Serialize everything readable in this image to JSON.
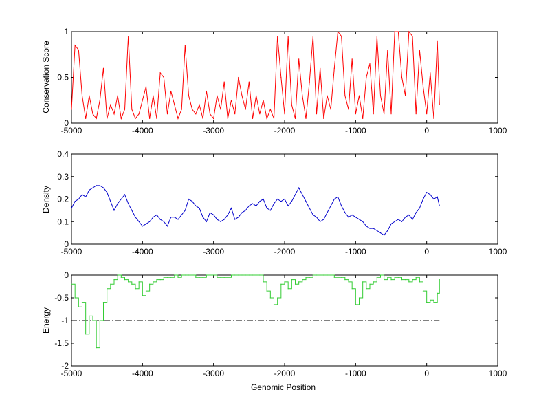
{
  "chart_data": [
    {
      "type": "line",
      "ylabel": "Conservation Score",
      "xlim": [
        -5000,
        1000
      ],
      "ylim": [
        0,
        1
      ],
      "xticks": [
        "-5000",
        "-4000",
        "-3000",
        "-2000",
        "-1000",
        "0",
        "1000"
      ],
      "yticks": [
        "0",
        "0.5",
        "1"
      ],
      "series": [
        {
          "color": "#ff0000",
          "x": [
            -5000,
            -4950,
            -4900,
            -4850,
            -4800,
            -4750,
            -4700,
            -4650,
            -4600,
            -4550,
            -4500,
            -4450,
            -4400,
            -4350,
            -4300,
            -4250,
            -4200,
            -4150,
            -4100,
            -4050,
            -4000,
            -3950,
            -3900,
            -3850,
            -3800,
            -3750,
            -3700,
            -3650,
            -3600,
            -3550,
            -3500,
            -3450,
            -3400,
            -3350,
            -3300,
            -3250,
            -3200,
            -3150,
            -3100,
            -3050,
            -3000,
            -2950,
            -2900,
            -2850,
            -2800,
            -2750,
            -2700,
            -2650,
            -2600,
            -2550,
            -2500,
            -2450,
            -2400,
            -2350,
            -2300,
            -2250,
            -2200,
            -2150,
            -2100,
            -2050,
            -2000,
            -1950,
            -1900,
            -1850,
            -1800,
            -1750,
            -1700,
            -1650,
            -1600,
            -1550,
            -1500,
            -1450,
            -1400,
            -1350,
            -1300,
            -1250,
            -1200,
            -1150,
            -1100,
            -1050,
            -1000,
            -950,
            -900,
            -850,
            -800,
            -750,
            -700,
            -650,
            -600,
            -550,
            -500,
            -450,
            -400,
            -350,
            -300,
            -250,
            -200,
            -150,
            -100,
            -50,
            0,
            50,
            100,
            150,
            180
          ],
          "y": [
            0.15,
            0.85,
            0.8,
            0.3,
            0.05,
            0.3,
            0.1,
            0.05,
            0.25,
            0.6,
            0.05,
            0.2,
            0.1,
            0.3,
            0.05,
            0.15,
            0.95,
            0.15,
            0.05,
            0.1,
            0.25,
            0.4,
            0.05,
            0.3,
            0.05,
            0.55,
            0.5,
            0.1,
            0.35,
            0.2,
            0.05,
            0.15,
            0.85,
            0.3,
            0.15,
            0.1,
            0.2,
            0.05,
            0.35,
            0.1,
            0.05,
            0.3,
            0.15,
            0.45,
            0.05,
            0.25,
            0.1,
            0.5,
            0.3,
            0.15,
            0.45,
            0.05,
            0.3,
            0.1,
            0.25,
            0.05,
            0.15,
            0.05,
            0.95,
            0.5,
            0.1,
            0.95,
            0.2,
            0.05,
            0.7,
            0.3,
            0.05,
            0.45,
            0.95,
            0.1,
            0.6,
            0.05,
            0.3,
            0.15,
            0.6,
            1.0,
            0.95,
            0.3,
            0.15,
            0.7,
            0.1,
            0.3,
            0.05,
            0.5,
            0.65,
            0.1,
            0.95,
            0.3,
            0.1,
            0.8,
            0.1,
            1.0,
            1.0,
            0.5,
            0.3,
            1.0,
            0.95,
            0.1,
            0.8,
            0.4,
            0.1,
            0.55,
            0.05,
            0.9,
            0.2
          ]
        }
      ]
    },
    {
      "type": "line",
      "ylabel": "Density",
      "xlim": [
        -5000,
        1000
      ],
      "ylim": [
        0,
        0.4
      ],
      "xticks": [
        "-5000",
        "-4000",
        "-3000",
        "-2000",
        "-1000",
        "0",
        "1000"
      ],
      "yticks": [
        "0",
        "0.1",
        "0.2",
        "0.3",
        "0.4"
      ],
      "series": [
        {
          "color": "#0000cc",
          "x": [
            -5000,
            -4950,
            -4900,
            -4850,
            -4800,
            -4750,
            -4700,
            -4650,
            -4600,
            -4550,
            -4500,
            -4450,
            -4400,
            -4350,
            -4300,
            -4250,
            -4200,
            -4150,
            -4100,
            -4050,
            -4000,
            -3950,
            -3900,
            -3850,
            -3800,
            -3750,
            -3700,
            -3650,
            -3600,
            -3550,
            -3500,
            -3450,
            -3400,
            -3350,
            -3300,
            -3250,
            -3200,
            -3150,
            -3100,
            -3050,
            -3000,
            -2950,
            -2900,
            -2850,
            -2800,
            -2750,
            -2700,
            -2650,
            -2600,
            -2550,
            -2500,
            -2450,
            -2400,
            -2350,
            -2300,
            -2250,
            -2200,
            -2150,
            -2100,
            -2050,
            -2000,
            -1950,
            -1900,
            -1850,
            -1800,
            -1750,
            -1700,
            -1650,
            -1600,
            -1550,
            -1500,
            -1450,
            -1400,
            -1350,
            -1300,
            -1250,
            -1200,
            -1150,
            -1100,
            -1050,
            -1000,
            -950,
            -900,
            -850,
            -800,
            -750,
            -700,
            -650,
            -600,
            -550,
            -500,
            -450,
            -400,
            -350,
            -300,
            -250,
            -200,
            -150,
            -100,
            -50,
            0,
            50,
            100,
            150,
            180
          ],
          "y": [
            0.16,
            0.19,
            0.2,
            0.22,
            0.21,
            0.24,
            0.25,
            0.26,
            0.26,
            0.25,
            0.23,
            0.19,
            0.15,
            0.18,
            0.2,
            0.22,
            0.18,
            0.15,
            0.12,
            0.1,
            0.08,
            0.09,
            0.1,
            0.12,
            0.13,
            0.11,
            0.1,
            0.08,
            0.12,
            0.12,
            0.11,
            0.13,
            0.15,
            0.2,
            0.19,
            0.17,
            0.16,
            0.12,
            0.1,
            0.14,
            0.13,
            0.11,
            0.1,
            0.11,
            0.13,
            0.16,
            0.11,
            0.12,
            0.14,
            0.15,
            0.17,
            0.18,
            0.17,
            0.19,
            0.2,
            0.16,
            0.15,
            0.18,
            0.2,
            0.19,
            0.2,
            0.17,
            0.19,
            0.22,
            0.25,
            0.22,
            0.19,
            0.16,
            0.13,
            0.12,
            0.1,
            0.11,
            0.14,
            0.17,
            0.2,
            0.21,
            0.17,
            0.14,
            0.12,
            0.13,
            0.12,
            0.11,
            0.1,
            0.08,
            0.07,
            0.07,
            0.06,
            0.05,
            0.04,
            0.06,
            0.09,
            0.1,
            0.11,
            0.1,
            0.12,
            0.13,
            0.11,
            0.14,
            0.16,
            0.2,
            0.23,
            0.22,
            0.2,
            0.21,
            0.17
          ]
        }
      ]
    },
    {
      "type": "line",
      "xlabel": "Genomic Position",
      "ylabel": "Energy",
      "xlim": [
        -5000,
        1000
      ],
      "ylim": [
        -2,
        0
      ],
      "xticks": [
        "-5000",
        "-4000",
        "-3000",
        "-2000",
        "-1000",
        "0",
        "1000"
      ],
      "yticks": [
        "-2",
        "-1.5",
        "-1",
        "-0.5",
        "0"
      ],
      "threshold": -1,
      "series": [
        {
          "color": "#33cc33",
          "x": [
            -5000,
            -4950,
            -4900,
            -4850,
            -4800,
            -4750,
            -4700,
            -4650,
            -4600,
            -4550,
            -4500,
            -4450,
            -4400,
            -4350,
            -4300,
            -4250,
            -4200,
            -4150,
            -4100,
            -4050,
            -4000,
            -3950,
            -3900,
            -3850,
            -3800,
            -3750,
            -3700,
            -3650,
            -3600,
            -3550,
            -3500,
            -3450,
            -3400,
            -3350,
            -3300,
            -3250,
            -3200,
            -3150,
            -3100,
            -3050,
            -3000,
            -2950,
            -2900,
            -2850,
            -2800,
            -2750,
            -2700,
            -2650,
            -2600,
            -2550,
            -2500,
            -2450,
            -2400,
            -2350,
            -2300,
            -2250,
            -2200,
            -2150,
            -2100,
            -2050,
            -2000,
            -1950,
            -1900,
            -1850,
            -1800,
            -1750,
            -1700,
            -1650,
            -1600,
            -1550,
            -1500,
            -1450,
            -1400,
            -1350,
            -1300,
            -1250,
            -1200,
            -1150,
            -1100,
            -1050,
            -1000,
            -950,
            -900,
            -850,
            -800,
            -750,
            -700,
            -650,
            -600,
            -550,
            -500,
            -450,
            -400,
            -350,
            -300,
            -250,
            -200,
            -150,
            -100,
            -50,
            0,
            50,
            100,
            150,
            180
          ],
          "y": [
            -0.2,
            -0.5,
            -0.7,
            -0.6,
            -1.3,
            -0.9,
            -1.0,
            -1.6,
            -1.0,
            -0.6,
            -0.3,
            -0.2,
            -0.1,
            0.0,
            -0.05,
            -0.1,
            -0.15,
            -0.2,
            -0.3,
            -0.15,
            -0.45,
            -0.35,
            -0.2,
            -0.15,
            -0.1,
            -0.1,
            -0.05,
            -0.05,
            -0.05,
            0.0,
            -0.05,
            0.0,
            0.0,
            0.0,
            0.0,
            -0.05,
            -0.05,
            -0.05,
            0.0,
            0.0,
            0.0,
            -0.05,
            -0.05,
            -0.05,
            -0.05,
            0.0,
            0.0,
            0.0,
            0.0,
            0.0,
            0.0,
            0.0,
            0.0,
            0.0,
            -0.15,
            -0.35,
            -0.5,
            -0.65,
            -0.5,
            -0.2,
            -0.15,
            -0.3,
            -0.1,
            -0.2,
            -0.15,
            -0.1,
            -0.05,
            -0.05,
            0.0,
            0.0,
            0.0,
            0.0,
            0.0,
            0.0,
            -0.05,
            -0.05,
            -0.05,
            -0.1,
            -0.15,
            -0.3,
            -0.65,
            -0.5,
            -0.15,
            -0.3,
            -0.2,
            -0.15,
            -0.05,
            0.0,
            -0.1,
            -0.05,
            -0.1,
            -0.05,
            -0.05,
            -0.1,
            -0.1,
            -0.15,
            -0.1,
            -0.05,
            -0.15,
            -0.35,
            -0.6,
            -0.55,
            -0.6,
            -0.4,
            -0.1
          ]
        }
      ]
    }
  ]
}
